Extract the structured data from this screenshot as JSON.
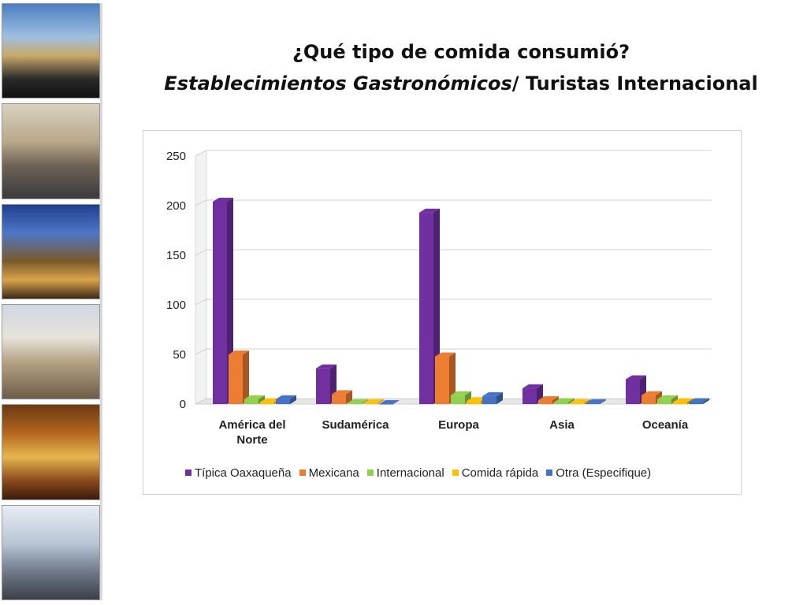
{
  "title": {
    "line1": "¿Qué tipo de comida consumió?",
    "line2_italic": "Establecimientos Gastronómicos",
    "line2_rest": "/ Turistas Internacional"
  },
  "chart_data": {
    "type": "bar",
    "categories": [
      "América del Norte",
      "Sudamérica",
      "Europa",
      "Asia",
      "Oceanía"
    ],
    "series": [
      {
        "name": "Típica Oaxaqueña",
        "color": "#7030a0",
        "values": [
          204,
          36,
          193,
          16,
          25
        ]
      },
      {
        "name": "Mexicana",
        "color": "#ed7d31",
        "values": [
          50,
          10,
          48,
          4,
          9
        ]
      },
      {
        "name": "Internacional",
        "color": "#92d050",
        "values": [
          5,
          1,
          9,
          2,
          5
        ]
      },
      {
        "name": "Comida rápida",
        "color": "#ffc000",
        "values": [
          2,
          1,
          3,
          1,
          2
        ]
      },
      {
        "name": "Otra (Especifique)",
        "color": "#4472c4",
        "values": [
          5,
          0,
          8,
          1,
          2
        ]
      }
    ],
    "y_ticks": [
      "0",
      "50",
      "100",
      "150",
      "200",
      "250"
    ],
    "ylim": [
      0,
      250
    ],
    "grid": true,
    "legend_position": "bottom"
  }
}
